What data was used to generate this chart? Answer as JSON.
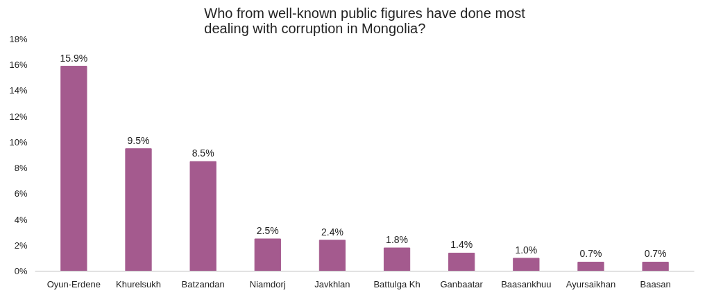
{
  "chart_data": {
    "type": "bar",
    "title": "Who from well-known public figures have done most dealing with corruption in Mongolia?",
    "categories": [
      "Oyun-Erdene",
      "Khurelsukh",
      "Batzandan",
      "Niamdorj",
      "Javkhlan",
      "Battulga Kh",
      "Ganbaatar",
      "Baasankhuu",
      "Ayursaikhan",
      "Baasan"
    ],
    "values": [
      15.9,
      9.5,
      8.5,
      2.5,
      2.4,
      1.8,
      1.4,
      1.0,
      0.7,
      0.7
    ],
    "value_labels": [
      "15.9%",
      "9.5%",
      "8.5%",
      "2.5%",
      "2.4%",
      "1.8%",
      "1.4%",
      "1.0%",
      "0.7%",
      "0.7%"
    ],
    "color": "#a45a8e",
    "ylim": [
      0,
      18
    ],
    "yticks": [
      {
        "value": 0,
        "label": "0%"
      },
      {
        "value": 2,
        "label": "2%"
      },
      {
        "value": 4,
        "label": "4%"
      },
      {
        "value": 6,
        "label": "6%"
      },
      {
        "value": 8,
        "label": "8%"
      },
      {
        "value": 10,
        "label": "10%"
      },
      {
        "value": 12,
        "label": "12%"
      },
      {
        "value": 14,
        "label": "14%"
      },
      {
        "value": 16,
        "label": "16%"
      },
      {
        "value": 18,
        "label": "18%"
      }
    ],
    "grid": false
  }
}
